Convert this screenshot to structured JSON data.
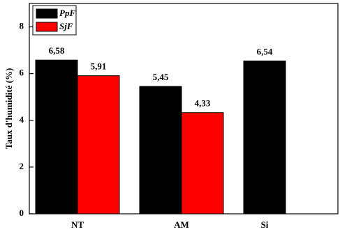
{
  "chart_data": {
    "type": "bar",
    "y_label": "Taux d'humidité (%)",
    "categories": [
      "NT",
      "AM",
      "Si"
    ],
    "series": [
      {
        "name": "PpF",
        "color": "#000000",
        "values": [
          6.58,
          5.45,
          6.54
        ],
        "value_labels": [
          "6,58",
          "5,45",
          "6,54"
        ]
      },
      {
        "name": "SjF",
        "color": "#ff0000",
        "values": [
          5.91,
          4.33,
          null
        ],
        "value_labels": [
          "5,91",
          "4,33",
          null
        ]
      }
    ],
    "ylim": [
      0,
      9
    ],
    "yticks": [
      0,
      2,
      4,
      6,
      8
    ],
    "legend": "upper left"
  }
}
